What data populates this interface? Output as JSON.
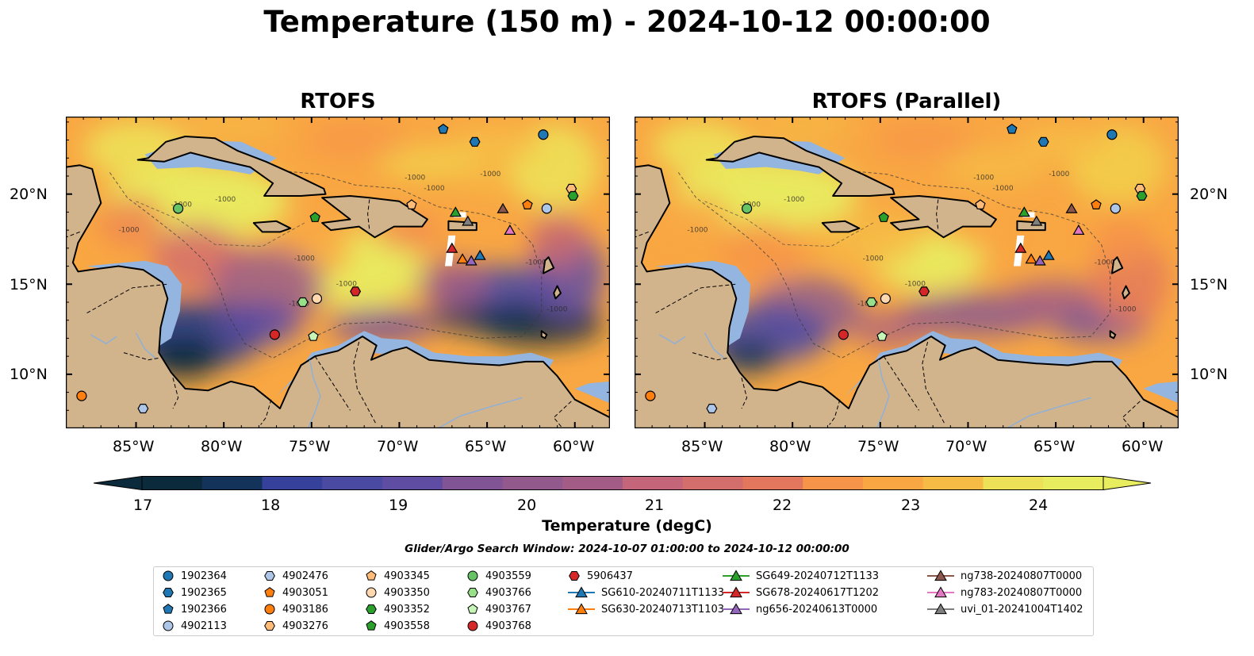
{
  "title": "Temperature (150 m) - 2024-10-12 00:00:00",
  "panels": [
    {
      "title": "RTOFS",
      "variant": "rtofs"
    },
    {
      "title": "RTOFS (Parallel)",
      "variant": "parallel"
    }
  ],
  "map": {
    "lon_range": [
      -89,
      -58
    ],
    "lat_range": [
      7,
      24.3
    ],
    "lon_ticks": [
      "85°W",
      "80°W",
      "75°W",
      "70°W",
      "65°W",
      "60°W"
    ],
    "lon_tick_values": [
      -85,
      -80,
      -75,
      -70,
      -65,
      -60
    ],
    "lat_ticks": [
      "20°N",
      "15°N",
      "10°N"
    ],
    "lat_tick_values": [
      20,
      15,
      10
    ],
    "contour_label": "-1000",
    "colors": {
      "land": "#d2b48c",
      "shelf": "#93b5df",
      "deep_cold": "#07263a"
    }
  },
  "colorbar": {
    "label": "Temperature (degC)",
    "min": 16.5,
    "max": 24.5,
    "tick_labels": [
      "17",
      "18",
      "19",
      "20",
      "21",
      "22",
      "23",
      "24"
    ],
    "tick_values": [
      17,
      18,
      19,
      20,
      21,
      22,
      23,
      24
    ],
    "colors": [
      "#0b2b3c",
      "#13335a",
      "#223a85",
      "#35419b",
      "#4b4aa3",
      "#5f4ca3",
      "#714f9c",
      "#815495",
      "#92598d",
      "#a25c86",
      "#b36180",
      "#c4657a",
      "#d36e6c",
      "#e2775d",
      "#ef8452",
      "#f69549",
      "#f9a743",
      "#f6bb45",
      "#f2ce4a",
      "#ede158",
      "#e8ec5f"
    ],
    "extend": "both"
  },
  "search_window": "Glider/Argo Search Window: 2024-10-07 01:00:00 to 2024-10-12 00:00:00",
  "legend": [
    {
      "label": "1902364",
      "marker": "circle",
      "color": "#1f77b4"
    },
    {
      "label": "1902365",
      "marker": "hexagon",
      "color": "#1f77b4"
    },
    {
      "label": "1902366",
      "marker": "pentagon",
      "color": "#1f77b4"
    },
    {
      "label": "4902113",
      "marker": "circle",
      "color": "#aec7e8"
    },
    {
      "label": "4902476",
      "marker": "hexagon",
      "color": "#aec7e8"
    },
    {
      "label": "4903051",
      "marker": "pentagon",
      "color": "#ff7f0e"
    },
    {
      "label": "4903186",
      "marker": "circle",
      "color": "#ff7f0e"
    },
    {
      "label": "4903276",
      "marker": "hexagon",
      "color": "#ffbb78"
    },
    {
      "label": "4903345",
      "marker": "pentagon",
      "color": "#ffbb78"
    },
    {
      "label": "4903350",
      "marker": "circle",
      "color": "#ffd8b0"
    },
    {
      "label": "4903352",
      "marker": "hexagon",
      "color": "#2ca02c"
    },
    {
      "label": "4903558",
      "marker": "pentagon",
      "color": "#2ca02c"
    },
    {
      "label": "4903559",
      "marker": "circle",
      "color": "#66c466"
    },
    {
      "label": "4903766",
      "marker": "hexagon",
      "color": "#98df8a"
    },
    {
      "label": "4903767",
      "marker": "pentagon",
      "color": "#c7f5b8"
    },
    {
      "label": "4903768",
      "marker": "circle",
      "color": "#d62728"
    },
    {
      "label": "5906437",
      "marker": "hexagon",
      "color": "#d62728"
    },
    {
      "label": "SG610-20240711T1133",
      "marker": "triangle",
      "color": "#1f77b4",
      "line": true
    },
    {
      "label": "SG630-20240713T1103",
      "marker": "triangle",
      "color": "#ff7f0e",
      "line": true
    },
    {
      "label": "SG649-20240712T1133",
      "marker": "triangle",
      "color": "#2ca02c",
      "line": true
    },
    {
      "label": "SG678-20240617T1202",
      "marker": "triangle",
      "color": "#d62728",
      "line": true
    },
    {
      "label": "ng656-20240613T0000",
      "marker": "triangle",
      "color": "#9467bd",
      "line": true
    },
    {
      "label": "ng738-20240807T0000",
      "marker": "triangle",
      "color": "#8c564b",
      "line": true
    },
    {
      "label": "ng783-20240807T0000",
      "marker": "triangle",
      "color": "#e377c2",
      "line": true
    },
    {
      "label": "uvi_01-20241004T1402",
      "marker": "triangle",
      "color": "#7f7f7f",
      "line": true
    }
  ],
  "platforms": [
    {
      "id": "1902364",
      "lon": -61.8,
      "lat": 23.3
    },
    {
      "id": "1902365",
      "lon": -65.7,
      "lat": 22.9
    },
    {
      "id": "1902366",
      "lon": -67.5,
      "lat": 23.6
    },
    {
      "id": "4902113",
      "lon": -61.6,
      "lat": 19.2
    },
    {
      "id": "4902476",
      "lon": -84.6,
      "lat": 8.1
    },
    {
      "id": "4903051",
      "lon": -62.7,
      "lat": 19.4
    },
    {
      "id": "4903186",
      "lon": -88.1,
      "lat": 8.8
    },
    {
      "id": "4903276",
      "lon": -60.2,
      "lat": 20.3
    },
    {
      "id": "4903345",
      "lon": -69.3,
      "lat": 19.4
    },
    {
      "id": "4903350",
      "lon": -74.7,
      "lat": 14.2
    },
    {
      "id": "4903352",
      "lon": -60.1,
      "lat": 19.9
    },
    {
      "id": "4903558",
      "lon": -74.8,
      "lat": 18.7
    },
    {
      "id": "4903559",
      "lon": -82.6,
      "lat": 19.2
    },
    {
      "id": "4903766",
      "lon": -75.5,
      "lat": 14.0
    },
    {
      "id": "4903767",
      "lon": -74.9,
      "lat": 12.1
    },
    {
      "id": "4903768",
      "lon": -77.1,
      "lat": 12.2
    },
    {
      "id": "5906437",
      "lon": -72.5,
      "lat": 14.6
    },
    {
      "id": "SG610-20240711T1133",
      "lon": -65.4,
      "lat": 16.6
    },
    {
      "id": "SG630-20240713T1103",
      "lon": -66.4,
      "lat": 16.4
    },
    {
      "id": "SG649-20240712T1133",
      "lon": -66.8,
      "lat": 19.0
    },
    {
      "id": "SG678-20240617T1202",
      "lon": -67.0,
      "lat": 17.0
    },
    {
      "id": "ng656-20240613T0000",
      "lon": -65.9,
      "lat": 16.3
    },
    {
      "id": "ng738-20240807T0000",
      "lon": -64.1,
      "lat": 19.2
    },
    {
      "id": "ng783-20240807T0000",
      "lon": -63.7,
      "lat": 18.0
    },
    {
      "id": "uvi_01-20241004T1402",
      "lon": -66.1,
      "lat": 18.5
    }
  ]
}
